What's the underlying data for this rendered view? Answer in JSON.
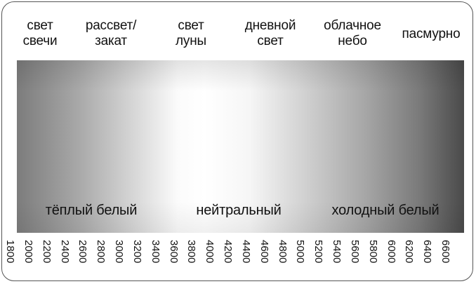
{
  "top_labels": [
    {
      "text": "свет\nсвечи"
    },
    {
      "text": "рассвет/\nзакат"
    },
    {
      "text": "свет\nлуны"
    },
    {
      "text": "дневной\nсвет"
    },
    {
      "text": "облачное\nнебо"
    },
    {
      "text": "пасмурно"
    }
  ],
  "zones": [
    {
      "text": "тёплый белый"
    },
    {
      "text": "нейтральный"
    },
    {
      "text": "холодный белый"
    }
  ],
  "scale": {
    "ticks": [
      "1800",
      "2000",
      "2200",
      "2400",
      "2600",
      "2800",
      "3000",
      "3200",
      "3400",
      "3600",
      "3800",
      "4000",
      "4200",
      "4400",
      "4600",
      "4800",
      "5000",
      "5200",
      "5400",
      "5600",
      "5800",
      "6000",
      "6200",
      "6400",
      "6600"
    ]
  },
  "colors": {
    "warm_end": "#7c7c7c",
    "neutral_center": "#ffffff",
    "cool_end": "#4a4a4a",
    "text": "#111111",
    "frame": "#555555"
  }
}
